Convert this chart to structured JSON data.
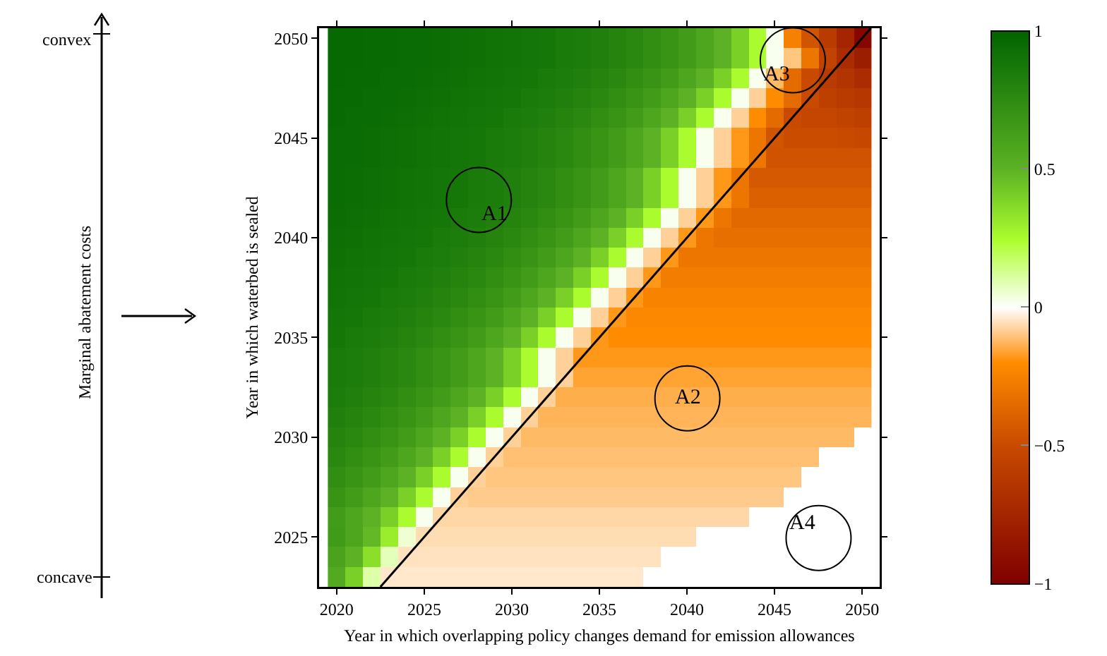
{
  "chart_data": {
    "type": "heatmap",
    "xlabel": "Year in which overlapping policy changes demand for emission allowances",
    "ylabel": "Year in which waterbed is sealed",
    "x": [
      2020,
      2021,
      2022,
      2023,
      2024,
      2025,
      2026,
      2027,
      2028,
      2029,
      2030,
      2031,
      2032,
      2033,
      2034,
      2035,
      2036,
      2037,
      2038,
      2039,
      2040,
      2041,
      2042,
      2043,
      2044,
      2045,
      2046,
      2047,
      2048,
      2049,
      2050
    ],
    "cells": [
      [
        0.97,
        0.97,
        0.96,
        0.96,
        0.95,
        0.95,
        0.94,
        0.93,
        0.92,
        0.91,
        0.9,
        0.89,
        0.88,
        0.86,
        0.84,
        0.82,
        0.8,
        0.77,
        0.73,
        0.69,
        0.64,
        0.58,
        0.5,
        0.4,
        0.25,
        0.02,
        -0.25,
        -0.45,
        -0.6,
        -0.75,
        -0.95
      ],
      [
        0.97,
        0.97,
        0.96,
        0.96,
        0.95,
        0.95,
        0.94,
        0.93,
        0.92,
        0.91,
        0.9,
        0.89,
        0.88,
        0.86,
        0.84,
        0.82,
        0.8,
        0.77,
        0.73,
        0.69,
        0.64,
        0.58,
        0.5,
        0.4,
        0.25,
        0.02,
        -0.1,
        -0.3,
        -0.55,
        -0.7,
        -0.8
      ],
      [
        0.97,
        0.96,
        0.96,
        0.95,
        0.95,
        0.94,
        0.93,
        0.92,
        0.91,
        0.9,
        0.89,
        0.88,
        0.86,
        0.84,
        0.82,
        0.8,
        0.77,
        0.73,
        0.69,
        0.64,
        0.58,
        0.5,
        0.4,
        0.25,
        0.02,
        -0.12,
        -0.35,
        -0.5,
        -0.6,
        -0.65,
        -0.7
      ],
      [
        0.96,
        0.96,
        0.95,
        0.95,
        0.94,
        0.93,
        0.92,
        0.91,
        0.9,
        0.89,
        0.88,
        0.86,
        0.84,
        0.82,
        0.8,
        0.77,
        0.73,
        0.69,
        0.64,
        0.58,
        0.5,
        0.4,
        0.25,
        0.02,
        -0.08,
        -0.2,
        -0.35,
        -0.5,
        -0.57,
        -0.6,
        -0.62
      ],
      [
        0.96,
        0.95,
        0.95,
        0.94,
        0.93,
        0.92,
        0.91,
        0.9,
        0.89,
        0.88,
        0.86,
        0.84,
        0.82,
        0.8,
        0.77,
        0.73,
        0.69,
        0.64,
        0.58,
        0.5,
        0.4,
        0.25,
        0.02,
        -0.08,
        -0.2,
        -0.35,
        -0.5,
        -0.53,
        -0.53,
        -0.55,
        -0.57
      ],
      [
        0.95,
        0.95,
        0.94,
        0.93,
        0.92,
        0.91,
        0.9,
        0.89,
        0.88,
        0.86,
        0.84,
        0.82,
        0.8,
        0.77,
        0.73,
        0.69,
        0.64,
        0.58,
        0.5,
        0.4,
        0.25,
        0.02,
        -0.08,
        -0.18,
        -0.3,
        -0.45,
        -0.49,
        -0.49,
        -0.49,
        -0.5,
        -0.52
      ],
      [
        0.95,
        0.95,
        0.94,
        0.93,
        0.92,
        0.91,
        0.9,
        0.89,
        0.88,
        0.86,
        0.84,
        0.82,
        0.8,
        0.77,
        0.73,
        0.69,
        0.64,
        0.58,
        0.5,
        0.4,
        0.25,
        0.02,
        -0.08,
        -0.18,
        -0.3,
        -0.46,
        -0.46,
        -0.46,
        -0.46,
        -0.46,
        -0.46
      ],
      [
        0.95,
        0.94,
        0.93,
        0.92,
        0.91,
        0.9,
        0.89,
        0.88,
        0.86,
        0.84,
        0.82,
        0.8,
        0.77,
        0.73,
        0.69,
        0.64,
        0.58,
        0.5,
        0.4,
        0.25,
        0.02,
        -0.08,
        -0.18,
        -0.3,
        -0.43,
        -0.43,
        -0.43,
        -0.43,
        -0.43,
        -0.43,
        -0.43
      ],
      [
        0.95,
        0.94,
        0.93,
        0.92,
        0.91,
        0.9,
        0.89,
        0.88,
        0.86,
        0.84,
        0.82,
        0.8,
        0.77,
        0.73,
        0.69,
        0.64,
        0.58,
        0.5,
        0.4,
        0.25,
        0.02,
        -0.08,
        -0.18,
        -0.3,
        -0.4,
        -0.4,
        -0.4,
        -0.4,
        -0.4,
        -0.4,
        -0.4
      ],
      [
        0.94,
        0.93,
        0.92,
        0.91,
        0.9,
        0.89,
        0.88,
        0.86,
        0.84,
        0.82,
        0.8,
        0.77,
        0.73,
        0.69,
        0.64,
        0.58,
        0.5,
        0.4,
        0.25,
        0.02,
        -0.08,
        -0.18,
        -0.3,
        -0.36,
        -0.36,
        -0.36,
        -0.36,
        -0.36,
        -0.36,
        -0.36,
        -0.36
      ],
      [
        0.93,
        0.92,
        0.91,
        0.9,
        0.89,
        0.88,
        0.86,
        0.84,
        0.82,
        0.8,
        0.77,
        0.73,
        0.69,
        0.64,
        0.58,
        0.5,
        0.4,
        0.25,
        0.02,
        -0.08,
        -0.18,
        -0.3,
        -0.33,
        -0.33,
        -0.33,
        -0.33,
        -0.33,
        -0.33,
        -0.33,
        -0.33,
        -0.33
      ],
      [
        0.92,
        0.91,
        0.9,
        0.89,
        0.88,
        0.86,
        0.84,
        0.82,
        0.8,
        0.77,
        0.73,
        0.69,
        0.64,
        0.58,
        0.5,
        0.4,
        0.25,
        0.02,
        -0.08,
        -0.18,
        -0.3,
        -0.3,
        -0.3,
        -0.3,
        -0.3,
        -0.3,
        -0.3,
        -0.3,
        -0.3,
        -0.3,
        -0.3
      ],
      [
        0.91,
        0.9,
        0.89,
        0.88,
        0.86,
        0.84,
        0.82,
        0.8,
        0.77,
        0.73,
        0.69,
        0.64,
        0.58,
        0.5,
        0.4,
        0.25,
        0.02,
        -0.08,
        -0.18,
        -0.27,
        -0.27,
        -0.27,
        -0.27,
        -0.27,
        -0.27,
        -0.27,
        -0.27,
        -0.27,
        -0.27,
        -0.27,
        -0.27
      ],
      [
        0.9,
        0.89,
        0.88,
        0.86,
        0.84,
        0.82,
        0.8,
        0.77,
        0.73,
        0.69,
        0.64,
        0.58,
        0.5,
        0.4,
        0.25,
        0.02,
        -0.08,
        -0.18,
        -0.24,
        -0.24,
        -0.24,
        -0.24,
        -0.24,
        -0.24,
        -0.24,
        -0.24,
        -0.24,
        -0.24,
        -0.24,
        -0.24,
        -0.24
      ],
      [
        0.89,
        0.88,
        0.86,
        0.84,
        0.82,
        0.8,
        0.77,
        0.73,
        0.69,
        0.64,
        0.58,
        0.5,
        0.4,
        0.25,
        0.02,
        -0.08,
        -0.18,
        -0.22,
        -0.22,
        -0.22,
        -0.22,
        -0.22,
        -0.22,
        -0.22,
        -0.22,
        -0.22,
        -0.22,
        -0.22,
        -0.22,
        -0.22,
        -0.22
      ],
      [
        0.88,
        0.86,
        0.84,
        0.82,
        0.8,
        0.77,
        0.73,
        0.69,
        0.64,
        0.58,
        0.5,
        0.4,
        0.25,
        0.02,
        -0.08,
        -0.18,
        -0.2,
        -0.2,
        -0.2,
        -0.2,
        -0.2,
        -0.2,
        -0.2,
        -0.2,
        -0.2,
        -0.2,
        -0.2,
        -0.2,
        -0.2,
        -0.2,
        -0.2
      ],
      [
        0.86,
        0.84,
        0.82,
        0.8,
        0.77,
        0.73,
        0.69,
        0.64,
        0.58,
        0.5,
        0.4,
        0.25,
        0.02,
        -0.08,
        -0.18,
        -0.18,
        -0.18,
        -0.18,
        -0.18,
        -0.18,
        -0.18,
        -0.18,
        -0.18,
        -0.18,
        -0.18,
        -0.18,
        -0.18,
        -0.18,
        -0.18,
        -0.18,
        -0.18
      ],
      [
        0.86,
        0.84,
        0.82,
        0.8,
        0.77,
        0.73,
        0.69,
        0.64,
        0.58,
        0.5,
        0.4,
        0.25,
        0.02,
        -0.08,
        -0.16,
        -0.16,
        -0.16,
        -0.16,
        -0.16,
        -0.16,
        -0.16,
        -0.16,
        -0.16,
        -0.16,
        -0.16,
        -0.16,
        -0.16,
        -0.16,
        -0.16,
        -0.16,
        -0.16
      ],
      [
        0.84,
        0.82,
        0.8,
        0.77,
        0.73,
        0.69,
        0.64,
        0.58,
        0.5,
        0.4,
        0.25,
        0.02,
        -0.08,
        -0.14,
        -0.14,
        -0.14,
        -0.14,
        -0.14,
        -0.14,
        -0.14,
        -0.14,
        -0.14,
        -0.14,
        -0.14,
        -0.14,
        -0.14,
        -0.14,
        -0.14,
        -0.14,
        -0.14,
        -0.14
      ],
      [
        0.82,
        0.8,
        0.77,
        0.73,
        0.69,
        0.64,
        0.58,
        0.5,
        0.4,
        0.25,
        0.02,
        -0.08,
        -0.13,
        -0.13,
        -0.13,
        -0.13,
        -0.13,
        -0.13,
        -0.13,
        -0.13,
        -0.13,
        -0.13,
        -0.13,
        -0.13,
        -0.13,
        -0.13,
        -0.13,
        -0.13,
        -0.13,
        -0.13,
        -0.13
      ],
      [
        0.8,
        0.77,
        0.73,
        0.69,
        0.64,
        0.58,
        0.5,
        0.4,
        0.25,
        0.02,
        -0.08,
        -0.12,
        -0.12,
        -0.12,
        -0.12,
        -0.12,
        -0.12,
        -0.12,
        -0.12,
        -0.12,
        -0.12,
        -0.12,
        -0.12,
        -0.12,
        -0.12,
        -0.12,
        -0.12,
        -0.12,
        -0.12,
        -0.12,
        null
      ],
      [
        0.77,
        0.73,
        0.69,
        0.64,
        0.58,
        0.5,
        0.4,
        0.25,
        0.02,
        -0.08,
        -0.11,
        -0.11,
        -0.11,
        -0.11,
        -0.11,
        -0.11,
        -0.11,
        -0.11,
        -0.11,
        -0.11,
        -0.11,
        -0.11,
        -0.11,
        -0.11,
        -0.11,
        -0.11,
        -0.11,
        -0.11,
        null,
        null,
        null
      ],
      [
        0.73,
        0.69,
        0.64,
        0.58,
        0.5,
        0.4,
        0.25,
        0.02,
        -0.08,
        -0.1,
        -0.1,
        -0.1,
        -0.1,
        -0.1,
        -0.1,
        -0.1,
        -0.1,
        -0.1,
        -0.1,
        -0.1,
        -0.1,
        -0.1,
        -0.1,
        -0.1,
        -0.1,
        -0.1,
        -0.1,
        null,
        null,
        null,
        null
      ],
      [
        0.69,
        0.64,
        0.58,
        0.5,
        0.4,
        0.25,
        0.02,
        -0.08,
        -0.09,
        -0.09,
        -0.09,
        -0.09,
        -0.09,
        -0.09,
        -0.09,
        -0.09,
        -0.09,
        -0.09,
        -0.09,
        -0.09,
        -0.09,
        -0.09,
        -0.09,
        -0.09,
        -0.09,
        -0.09,
        null,
        null,
        null,
        null,
        null
      ],
      [
        0.64,
        0.58,
        0.5,
        0.4,
        0.25,
        0.02,
        -0.07,
        -0.07,
        -0.07,
        -0.07,
        -0.07,
        -0.07,
        -0.07,
        -0.07,
        -0.07,
        -0.07,
        -0.07,
        -0.07,
        -0.07,
        -0.07,
        -0.07,
        -0.07,
        -0.07,
        -0.07,
        null,
        null,
        null,
        null,
        null,
        null,
        null
      ],
      [
        0.65,
        0.58,
        0.48,
        0.3,
        0.05,
        -0.06,
        -0.06,
        -0.06,
        -0.06,
        -0.06,
        -0.06,
        -0.06,
        -0.06,
        -0.06,
        -0.06,
        -0.06,
        -0.06,
        -0.06,
        -0.06,
        -0.06,
        -0.06,
        null,
        null,
        null,
        null,
        null,
        null,
        null,
        null,
        null,
        null
      ],
      [
        0.6,
        0.5,
        0.35,
        0.08,
        -0.05,
        -0.05,
        -0.05,
        -0.05,
        -0.05,
        -0.05,
        -0.05,
        -0.05,
        -0.05,
        -0.05,
        -0.05,
        -0.05,
        -0.05,
        -0.05,
        -0.05,
        null,
        null,
        null,
        null,
        null,
        null,
        null,
        null,
        null,
        null,
        null,
        null
      ],
      [
        0.55,
        0.4,
        0.1,
        -0.04,
        -0.04,
        -0.04,
        -0.04,
        -0.04,
        -0.04,
        -0.04,
        -0.04,
        -0.04,
        -0.04,
        -0.04,
        -0.04,
        -0.04,
        -0.04,
        -0.04,
        null,
        null,
        null,
        null,
        null,
        null,
        null,
        null,
        null,
        null,
        null,
        null,
        null
      ]
    ],
    "clim": [
      -1,
      1
    ],
    "cticks": [
      {
        "value": -1,
        "label": "−1"
      },
      {
        "value": -0.5,
        "label": "−0.5"
      },
      0,
      0.5,
      1
    ],
    "xlim": [
      2019,
      2051
    ],
    "xticks": [
      2020,
      2025,
      2030,
      2035,
      2040,
      2045,
      2050
    ],
    "ylim": [
      2022.5,
      2050.5
    ],
    "yticks": [
      2025,
      2030,
      2035,
      2040,
      2045,
      2050
    ],
    "series": [
      {
        "type": "line",
        "color": "#000000",
        "x": [
          2022.5,
          2050.5
        ],
        "values": [
          2022.5,
          2050.5
        ]
      }
    ],
    "annotations": [
      "A1",
      "A2",
      "A3",
      "A4",
      "convex",
      "concave",
      "Marginal abatement costs"
    ]
  }
}
